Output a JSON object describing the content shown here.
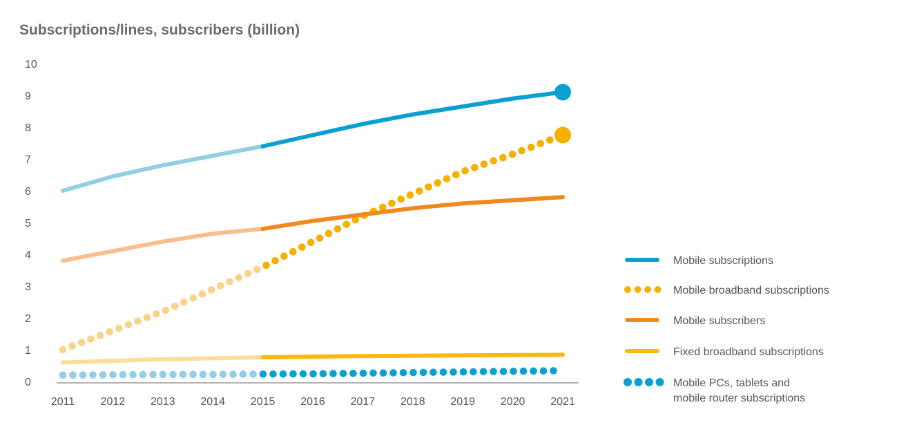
{
  "chart_data": {
    "type": "line",
    "title": "Subscriptions/lines, subscribers (billion)",
    "xlabel": "",
    "ylabel": "",
    "x": [
      "2011",
      "2012",
      "2013",
      "2014",
      "2015",
      "2016",
      "2017",
      "2018",
      "2019",
      "2020",
      "2021"
    ],
    "ylim": [
      0,
      10
    ],
    "yticks": [
      "0",
      "1",
      "2",
      "3",
      "4",
      "5",
      "6",
      "7",
      "8",
      "9",
      "10"
    ],
    "grid": false,
    "legend_position": "right",
    "forecast_from": "2015",
    "series": [
      {
        "name": "Mobile subscriptions",
        "style": "solid",
        "color": "#0aa0d2",
        "history_color": "#93cde6",
        "endpoint_marker": true,
        "values": [
          6.0,
          6.45,
          6.8,
          7.1,
          7.4,
          7.75,
          8.1,
          8.4,
          8.65,
          8.9,
          9.1
        ]
      },
      {
        "name": "Mobile broadband subscriptions",
        "style": "dotted",
        "color": "#f5b000",
        "history_color": "#fad38a",
        "endpoint_marker": true,
        "values": [
          1.0,
          1.6,
          2.2,
          2.9,
          3.6,
          4.4,
          5.2,
          5.9,
          6.6,
          7.15,
          7.75
        ]
      },
      {
        "name": "Mobile subscribers",
        "style": "solid",
        "color": "#f0891e",
        "history_color": "#f8bf8e",
        "endpoint_marker": false,
        "values": [
          3.8,
          4.1,
          4.4,
          4.65,
          4.8,
          5.05,
          5.25,
          5.45,
          5.6,
          5.7,
          5.8
        ]
      },
      {
        "name": "Fixed broadband subscriptions",
        "style": "solid",
        "color": "#fbb714",
        "history_color": "#fcdd9c",
        "endpoint_marker": false,
        "values": [
          0.6,
          0.65,
          0.7,
          0.73,
          0.76,
          0.78,
          0.8,
          0.81,
          0.82,
          0.83,
          0.84
        ]
      },
      {
        "name": "Mobile PCs, tablets and mobile router subscriptions",
        "name_lines": [
          "Mobile PCs, tablets and",
          "mobile router subscriptions"
        ],
        "style": "dotted",
        "color": "#0aa0d2",
        "history_color": "#93cde6",
        "endpoint_marker": false,
        "values": [
          0.2,
          0.21,
          0.22,
          0.22,
          0.23,
          0.24,
          0.26,
          0.28,
          0.3,
          0.32,
          0.34
        ]
      }
    ]
  }
}
